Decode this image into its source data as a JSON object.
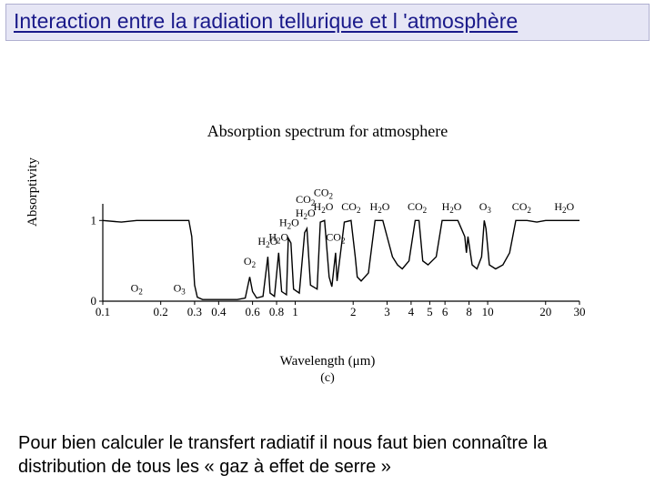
{
  "title": "Interaction entre la radiation tellurique et l 'atmosphère",
  "chart": {
    "type": "line",
    "title": "Absorption spectrum for atmosphere",
    "ylabel": "Absorptivity",
    "xlabel": "Wavelength (μm)",
    "sublabel": "(c)",
    "title_fontsize": 18,
    "label_fontsize": 15,
    "tick_fontsize": 13,
    "peak_fontsize": 12,
    "line_color": "#000000",
    "line_width": 1.4,
    "background_color": "#ffffff",
    "xscale": "log",
    "xlim": [
      0.1,
      30
    ],
    "ylim": [
      0,
      1.15
    ],
    "xticks": [
      0.1,
      0.2,
      0.3,
      0.4,
      0.6,
      0.8,
      1,
      2,
      3,
      4,
      5,
      6,
      8,
      10,
      20,
      30
    ],
    "xtick_labels": [
      "0.1",
      "0.2",
      "0.3",
      "0.4",
      "0.6",
      "0.8",
      "1",
      "2",
      "3",
      "4",
      "5",
      "6",
      "8",
      "10",
      "20",
      "30"
    ],
    "yticks": [
      0,
      1
    ],
    "ytick_labels": [
      "0",
      "1"
    ],
    "series": [
      [
        0.1,
        1.0
      ],
      [
        0.125,
        0.98
      ],
      [
        0.15,
        1.0
      ],
      [
        0.175,
        1.0
      ],
      [
        0.2,
        1.0
      ],
      [
        0.225,
        1.0
      ],
      [
        0.25,
        1.0
      ],
      [
        0.28,
        1.0
      ],
      [
        0.29,
        0.8
      ],
      [
        0.3,
        0.2
      ],
      [
        0.31,
        0.05
      ],
      [
        0.33,
        0.02
      ],
      [
        0.4,
        0.02
      ],
      [
        0.5,
        0.02
      ],
      [
        0.55,
        0.04
      ],
      [
        0.58,
        0.3
      ],
      [
        0.6,
        0.12
      ],
      [
        0.63,
        0.04
      ],
      [
        0.68,
        0.06
      ],
      [
        0.72,
        0.55
      ],
      [
        0.74,
        0.1
      ],
      [
        0.78,
        0.06
      ],
      [
        0.82,
        0.6
      ],
      [
        0.85,
        0.12
      ],
      [
        0.9,
        0.08
      ],
      [
        0.92,
        0.78
      ],
      [
        0.95,
        0.72
      ],
      [
        0.98,
        0.15
      ],
      [
        1.05,
        0.1
      ],
      [
        1.12,
        0.85
      ],
      [
        1.15,
        0.9
      ],
      [
        1.2,
        0.2
      ],
      [
        1.3,
        0.15
      ],
      [
        1.35,
        0.98
      ],
      [
        1.42,
        1.0
      ],
      [
        1.5,
        0.3
      ],
      [
        1.55,
        0.18
      ],
      [
        1.62,
        0.6
      ],
      [
        1.65,
        0.25
      ],
      [
        1.8,
        0.98
      ],
      [
        1.95,
        1.0
      ],
      [
        2.05,
        0.55
      ],
      [
        2.1,
        0.3
      ],
      [
        2.2,
        0.25
      ],
      [
        2.4,
        0.35
      ],
      [
        2.6,
        1.0
      ],
      [
        2.85,
        1.0
      ],
      [
        3.0,
        0.8
      ],
      [
        3.2,
        0.55
      ],
      [
        3.4,
        0.45
      ],
      [
        3.6,
        0.4
      ],
      [
        3.9,
        0.5
      ],
      [
        4.2,
        1.0
      ],
      [
        4.4,
        1.0
      ],
      [
        4.6,
        0.5
      ],
      [
        4.9,
        0.45
      ],
      [
        5.4,
        0.55
      ],
      [
        5.8,
        1.0
      ],
      [
        7.0,
        1.0
      ],
      [
        7.6,
        0.8
      ],
      [
        7.75,
        0.6
      ],
      [
        7.9,
        0.8
      ],
      [
        8.3,
        0.45
      ],
      [
        8.8,
        0.4
      ],
      [
        9.3,
        0.55
      ],
      [
        9.6,
        1.0
      ],
      [
        9.8,
        0.9
      ],
      [
        10.2,
        0.45
      ],
      [
        11.0,
        0.4
      ],
      [
        12.0,
        0.45
      ],
      [
        13.0,
        0.6
      ],
      [
        14.0,
        1.0
      ],
      [
        16.0,
        1.0
      ],
      [
        18.0,
        0.98
      ],
      [
        20.0,
        1.0
      ],
      [
        24.0,
        1.0
      ],
      [
        30.0,
        1.0
      ]
    ],
    "peak_labels": [
      {
        "x": 0.15,
        "y_label_offset": 0.12,
        "text": "O₂"
      },
      {
        "x": 0.25,
        "y_label_offset": 0.12,
        "text": "O₃"
      },
      {
        "x": 0.58,
        "y_label_offset": 0.45,
        "text": "O₂"
      },
      {
        "x": 0.72,
        "y_label_offset": 0.7,
        "text": "H₂O"
      },
      {
        "x": 0.82,
        "y_label_offset": 0.75,
        "text": "H₂O"
      },
      {
        "x": 0.93,
        "y_label_offset": 0.93,
        "text": "H₂O"
      },
      {
        "x": 1.13,
        "y_label_offset": 1.05,
        "text": "H₂O"
      },
      {
        "x": 1.13,
        "y_label_offset": 1.22,
        "text": "CO₂"
      },
      {
        "x": 1.4,
        "y_label_offset": 1.13,
        "text": "H₂O"
      },
      {
        "x": 1.4,
        "y_label_offset": 1.3,
        "text": "CO₂"
      },
      {
        "x": 1.62,
        "y_label_offset": 0.75,
        "text": "CO₂"
      },
      {
        "x": 1.95,
        "y_label_offset": 1.13,
        "text": "CO₂"
      },
      {
        "x": 2.75,
        "y_label_offset": 1.13,
        "text": "H₂O"
      },
      {
        "x": 4.3,
        "y_label_offset": 1.13,
        "text": "CO₂"
      },
      {
        "x": 6.5,
        "y_label_offset": 1.13,
        "text": "H₂O"
      },
      {
        "x": 9.7,
        "y_label_offset": 1.13,
        "text": "O₃"
      },
      {
        "x": 15.0,
        "y_label_offset": 1.13,
        "text": "CO₂"
      },
      {
        "x": 25.0,
        "y_label_offset": 1.13,
        "text": "H₂O"
      }
    ]
  },
  "footer": "Pour bien calculer le transfert radiatif il nous faut bien connaître la distribution de tous les « gaz à effet de serre »"
}
